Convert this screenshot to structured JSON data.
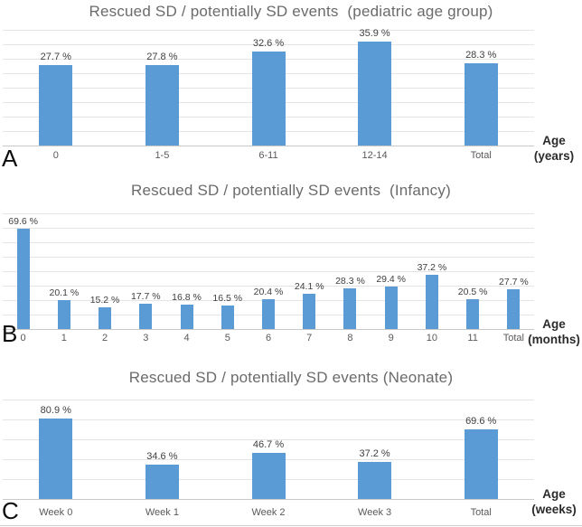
{
  "panels": [
    {
      "letter": "A"
    },
    {
      "letter": "B"
    },
    {
      "letter": "C"
    }
  ],
  "colors": {
    "bar": "#5b9bd5",
    "gridline": "#e4e4e4",
    "axis_line": "#c9c9c9",
    "title_text": "#6b6b6b",
    "data_label_text": "#3f3f3f",
    "category_text": "#595959",
    "axis_title_text": "#2b2b2b"
  },
  "chart_data": [
    {
      "type": "bar",
      "title": "Rescued SD / potentially SD events  (pediatric age group)",
      "categories": [
        "0",
        "1-5",
        "6-11",
        "12-14",
        "Total"
      ],
      "values": [
        27.7,
        27.8,
        32.6,
        35.9,
        28.3
      ],
      "data_labels": [
        "27.7 %",
        "27.8 %",
        "32.6 %",
        "35.9 %",
        "28.3 %"
      ],
      "x_axis_title_line1": "Age",
      "x_axis_title_line2": "(years)",
      "xlabel": "Age (years)",
      "ylabel": "",
      "ylim": [
        0,
        40
      ],
      "grid_step": 5,
      "grid": true,
      "legend": "none"
    },
    {
      "type": "bar",
      "title": "Rescued SD / potentially SD events  (Infancy)",
      "categories": [
        "0",
        "1",
        "2",
        "3",
        "4",
        "5",
        "6",
        "7",
        "8",
        "9",
        "10",
        "11",
        "Total"
      ],
      "values": [
        69.6,
        20.1,
        15.2,
        17.7,
        16.8,
        16.5,
        20.4,
        24.1,
        28.3,
        29.4,
        37.2,
        20.5,
        27.7
      ],
      "data_labels": [
        "69.6 %",
        "20.1 %",
        "15.2 %",
        "17.7 %",
        "16.8 %",
        "16.5 %",
        "20.4 %",
        "24.1 %",
        "28.3 %",
        "29.4 %",
        "37.2 %",
        "20.5 %",
        "27.7 %"
      ],
      "x_axis_title_line1": "Age",
      "x_axis_title_line2": "(months)",
      "xlabel": "Age (months)",
      "ylabel": "",
      "ylim": [
        0,
        80
      ],
      "grid_step": 10,
      "grid": true,
      "legend": "none"
    },
    {
      "type": "bar",
      "title": "Rescued SD / potentially SD events (Neonate)",
      "categories": [
        "Week 0",
        "Week 1",
        "Week 2",
        "Week 3",
        "Total"
      ],
      "values": [
        80.9,
        34.6,
        46.7,
        37.2,
        69.6
      ],
      "data_labels": [
        "80.9 %",
        "34.6 %",
        "46.7 %",
        "37.2 %",
        "69.6 %"
      ],
      "x_axis_title_line1": "Age",
      "x_axis_title_line2": "(weeks)",
      "xlabel": "Age (weeks)",
      "ylabel": "",
      "ylim": [
        0,
        100
      ],
      "grid_step": 20,
      "grid": true,
      "legend": "none"
    }
  ]
}
